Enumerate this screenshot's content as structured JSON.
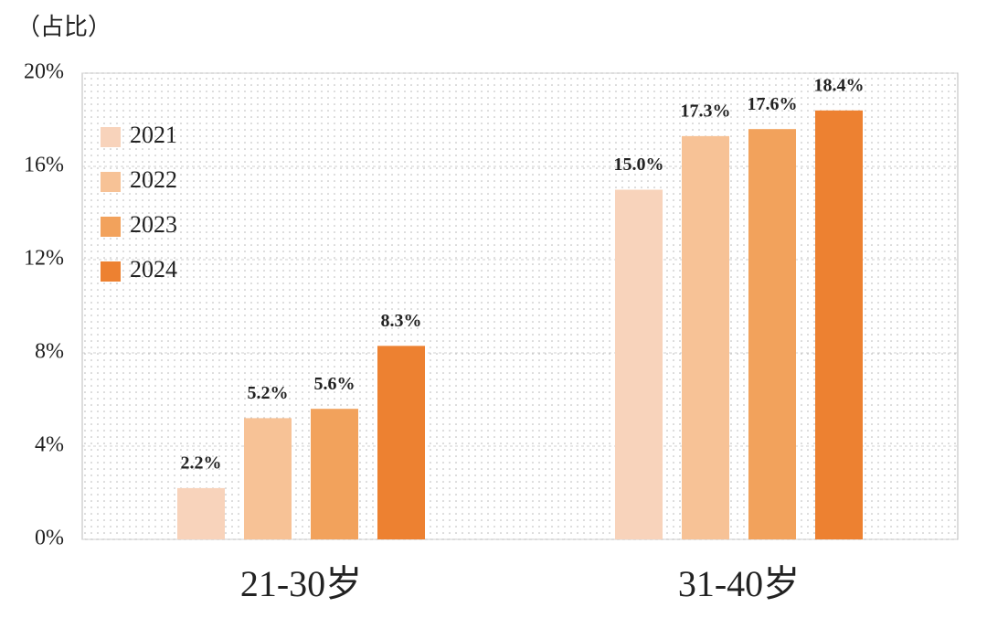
{
  "chart_data": {
    "type": "bar",
    "y_axis_label": "（占比）",
    "categories": [
      "21-30岁",
      "31-40岁"
    ],
    "series": [
      {
        "name": "2021",
        "color": "#f8d3bb",
        "values": [
          2.2,
          15.0
        ],
        "value_labels": [
          "2.2%",
          "15.0%"
        ]
      },
      {
        "name": "2022",
        "color": "#f7c296",
        "values": [
          5.2,
          17.3
        ],
        "value_labels": [
          "5.2%",
          "17.3%"
        ]
      },
      {
        "name": "2023",
        "color": "#f2a25c",
        "values": [
          5.6,
          17.6
        ],
        "value_labels": [
          "5.6%",
          "17.6%"
        ]
      },
      {
        "name": "2024",
        "color": "#ed8131",
        "values": [
          8.3,
          18.4
        ],
        "value_labels": [
          "8.3%",
          "18.4%"
        ]
      }
    ],
    "ylim": [
      0,
      20
    ],
    "yticks": [
      {
        "value": 0,
        "label": "0%"
      },
      {
        "value": 4,
        "label": "4%"
      },
      {
        "value": 8,
        "label": "8%"
      },
      {
        "value": 12,
        "label": "12%"
      },
      {
        "value": 16,
        "label": "16%"
      },
      {
        "value": 20,
        "label": "20%"
      }
    ],
    "grid": true,
    "legend": "upper left"
  }
}
